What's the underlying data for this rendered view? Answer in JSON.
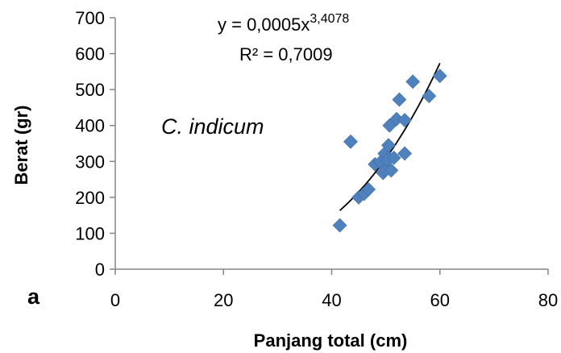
{
  "chart_data": {
    "type": "scatter",
    "panel_label": "a",
    "xlabel": "Panjang total (cm)",
    "ylabel": "Berat (gr)",
    "xlim": [
      0,
      80
    ],
    "ylim": [
      0,
      700
    ],
    "x_ticks": [
      0,
      20,
      40,
      60,
      80
    ],
    "y_ticks": [
      0,
      100,
      200,
      300,
      400,
      500,
      600,
      700
    ],
    "grid": false,
    "annotation": "C. indicum",
    "trendline": {
      "type": "power",
      "a": 0.0005,
      "b": 3.4078,
      "x_range": [
        41.5,
        60
      ],
      "equation_prefix": "y = 0,0005x",
      "equation_exponent": "3,4078",
      "r_squared_label": "R² = 0,7009"
    },
    "marker_color": "#4f81bd",
    "points": [
      {
        "x": 41.5,
        "y": 122
      },
      {
        "x": 43.5,
        "y": 355
      },
      {
        "x": 45.0,
        "y": 200
      },
      {
        "x": 46.0,
        "y": 210
      },
      {
        "x": 46.8,
        "y": 222
      },
      {
        "x": 48.0,
        "y": 292
      },
      {
        "x": 49.0,
        "y": 298
      },
      {
        "x": 49.5,
        "y": 268
      },
      {
        "x": 49.8,
        "y": 322
      },
      {
        "x": 50.0,
        "y": 276
      },
      {
        "x": 50.3,
        "y": 304
      },
      {
        "x": 50.5,
        "y": 345
      },
      {
        "x": 50.7,
        "y": 400
      },
      {
        "x": 51.0,
        "y": 275
      },
      {
        "x": 51.5,
        "y": 310
      },
      {
        "x": 52.0,
        "y": 418
      },
      {
        "x": 52.5,
        "y": 472
      },
      {
        "x": 53.5,
        "y": 415
      },
      {
        "x": 53.5,
        "y": 322
      },
      {
        "x": 55.0,
        "y": 522
      },
      {
        "x": 58.0,
        "y": 482
      },
      {
        "x": 60.0,
        "y": 538
      }
    ]
  }
}
